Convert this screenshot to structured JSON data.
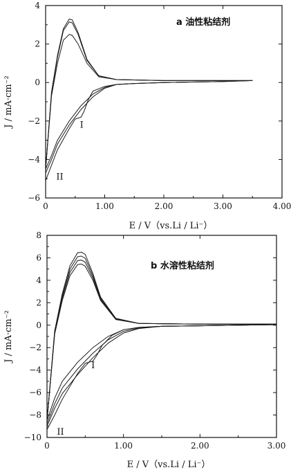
{
  "chart_data": [
    {
      "type": "line",
      "panel": "a",
      "title": "a  油性粘结剂",
      "xlabel": "E / V（vs.Li / Li⁻）",
      "ylabel": "J / mA·cm⁻²",
      "xlim": [
        0,
        4.0
      ],
      "ylim": [
        -6,
        4
      ],
      "xticks": [
        "0",
        "1.00",
        "2.00",
        "3.00",
        "4.00"
      ],
      "yticks": [
        "−6",
        "−4",
        "−2",
        "0",
        "2",
        "4"
      ],
      "xtick_values": [
        0,
        1,
        2,
        3,
        4
      ],
      "ytick_values": [
        -6,
        -4,
        -2,
        0,
        2,
        4
      ],
      "annotations": [
        {
          "text": "I",
          "x": 0.58,
          "y": -2.2
        },
        {
          "text": "II",
          "x": 0.18,
          "y": -4.9
        }
      ],
      "series": [
        {
          "x": [
            0,
            0.1,
            0.2,
            0.3,
            0.4,
            0.45,
            0.55,
            0.7,
            0.9,
            1.2,
            2,
            3,
            3.5
          ],
          "y": [
            -4.5,
            -0.5,
            1.4,
            2.8,
            3.3,
            3.25,
            2.6,
            1.2,
            0.35,
            0.15,
            0.1,
            0.1,
            0.1
          ]
        },
        {
          "x": [
            0,
            0.1,
            0.2,
            0.3,
            0.4,
            0.45,
            0.55,
            0.7,
            0.9,
            1.2,
            2,
            3,
            3.5
          ],
          "y": [
            -4.5,
            -0.6,
            1.3,
            2.7,
            3.15,
            3.1,
            2.5,
            1.15,
            0.35,
            0.15,
            0.1,
            0.1,
            0.1
          ]
        },
        {
          "x": [
            0,
            0.1,
            0.2,
            0.3,
            0.4,
            0.45,
            0.55,
            0.7,
            0.9,
            1.2,
            2,
            3,
            3.5
          ],
          "y": [
            -4.5,
            -0.7,
            1.0,
            2.2,
            2.5,
            2.45,
            2.0,
            1.0,
            0.3,
            0.15,
            0.1,
            0.1,
            0.1
          ]
        },
        {
          "x": [
            3.5,
            3.0,
            2.0,
            1.5,
            1.2,
            1.0,
            0.8,
            0.6,
            0.4,
            0.2,
            0.1,
            0
          ],
          "y": [
            0.1,
            0.05,
            0,
            -0.05,
            -0.1,
            -0.25,
            -0.6,
            -1.2,
            -2.0,
            -3.0,
            -3.8,
            -4.5
          ]
        },
        {
          "x": [
            3.5,
            3.0,
            2.0,
            1.5,
            1.2,
            1.0,
            0.8,
            0.6,
            0.4,
            0.2,
            0.1,
            0
          ],
          "y": [
            0.1,
            0.05,
            0,
            -0.05,
            -0.1,
            -0.3,
            -0.75,
            -1.4,
            -2.2,
            -3.2,
            -4.0,
            -4.7
          ]
        },
        {
          "x": [
            3.5,
            3.0,
            2.0,
            1.5,
            1.2,
            1.0,
            0.8,
            0.72,
            0.65,
            0.6,
            0.55,
            0.5,
            0.4,
            0.2,
            0.1,
            0
          ],
          "y": [
            0.1,
            0.05,
            0,
            -0.05,
            -0.1,
            -0.2,
            -0.45,
            -0.9,
            -1.5,
            -1.8,
            -1.85,
            -1.9,
            -2.4,
            -3.5,
            -4.3,
            -5.1
          ]
        }
      ]
    },
    {
      "type": "line",
      "panel": "b",
      "title": "b  水溶性粘结剂",
      "xlabel": "E / V（vs.Li / Li⁻）",
      "ylabel": "J / mA·cm⁻²",
      "xlim": [
        0,
        3.0
      ],
      "ylim": [
        -10,
        8
      ],
      "xticks": [
        "0",
        "1.00",
        "2.00",
        "3.00"
      ],
      "yticks": [
        "−10",
        "−8",
        "−6",
        "−4",
        "−2",
        "0",
        "2",
        "4",
        "6",
        "8"
      ],
      "xtick_values": [
        0,
        1,
        2,
        3
      ],
      "ytick_values": [
        -10,
        -8,
        -6,
        -4,
        -2,
        0,
        2,
        4,
        6,
        8
      ],
      "annotations": [
        {
          "text": "I",
          "x": 0.58,
          "y": -3.6
        },
        {
          "text": "II",
          "x": 0.13,
          "y": -9.5
        }
      ],
      "series": [
        {
          "x": [
            0,
            0.1,
            0.2,
            0.3,
            0.4,
            0.45,
            0.5,
            0.6,
            0.7,
            0.9,
            1.2,
            2,
            3
          ],
          "y": [
            -8.5,
            -0.5,
            2.8,
            5.3,
            6.45,
            6.5,
            6.3,
            4.6,
            2.5,
            0.6,
            0.15,
            0.1,
            0.1
          ]
        },
        {
          "x": [
            0,
            0.1,
            0.2,
            0.3,
            0.4,
            0.45,
            0.5,
            0.6,
            0.7,
            0.9,
            1.2,
            2,
            3
          ],
          "y": [
            -8.5,
            -0.6,
            2.6,
            5.0,
            6.1,
            6.15,
            5.95,
            4.4,
            2.4,
            0.6,
            0.15,
            0.1,
            0.1
          ]
        },
        {
          "x": [
            0,
            0.1,
            0.2,
            0.3,
            0.4,
            0.45,
            0.5,
            0.6,
            0.7,
            0.9,
            1.2,
            2,
            3
          ],
          "y": [
            -8.5,
            -0.7,
            2.4,
            4.7,
            5.75,
            5.8,
            5.6,
            4.2,
            2.3,
            0.55,
            0.15,
            0.1,
            0.1
          ]
        },
        {
          "x": [
            0,
            0.1,
            0.2,
            0.3,
            0.4,
            0.45,
            0.5,
            0.6,
            0.7,
            0.9,
            1.2,
            2,
            3
          ],
          "y": [
            -8.5,
            -0.8,
            2.2,
            4.4,
            5.4,
            5.45,
            5.25,
            4.0,
            2.2,
            0.5,
            0.15,
            0.1,
            0.1
          ]
        },
        {
          "x": [
            3.0,
            2.5,
            2.0,
            1.5,
            1.2,
            1.0,
            0.8,
            0.6,
            0.4,
            0.2,
            0.1,
            0
          ],
          "y": [
            0.05,
            0,
            -0.05,
            -0.1,
            -0.2,
            -0.4,
            -1.0,
            -2.0,
            -3.3,
            -5.0,
            -6.5,
            -8.5
          ]
        },
        {
          "x": [
            3.0,
            2.5,
            2.0,
            1.5,
            1.2,
            1.0,
            0.8,
            0.6,
            0.4,
            0.2,
            0.1,
            0
          ],
          "y": [
            0.05,
            0,
            -0.05,
            -0.1,
            -0.25,
            -0.55,
            -1.3,
            -2.5,
            -3.9,
            -5.6,
            -7.0,
            -8.8
          ]
        },
        {
          "x": [
            3.0,
            2.5,
            2.0,
            1.5,
            1.2,
            1.0,
            0.8,
            0.6,
            0.4,
            0.2,
            0.1,
            0
          ],
          "y": [
            0.05,
            0,
            -0.05,
            -0.1,
            -0.3,
            -0.7,
            -1.6,
            -2.9,
            -4.4,
            -6.1,
            -7.4,
            -9.0
          ]
        },
        {
          "x": [
            3.0,
            2.5,
            2.0,
            1.5,
            1.2,
            1.0,
            0.85,
            0.72,
            0.65,
            0.6,
            0.55,
            0.5,
            0.4,
            0.2,
            0.1,
            0
          ],
          "y": [
            0.05,
            0,
            -0.05,
            -0.1,
            -0.2,
            -0.4,
            -0.9,
            -1.8,
            -2.7,
            -3.2,
            -3.3,
            -3.4,
            -4.3,
            -6.6,
            -8.0,
            -9.3
          ]
        }
      ]
    }
  ]
}
